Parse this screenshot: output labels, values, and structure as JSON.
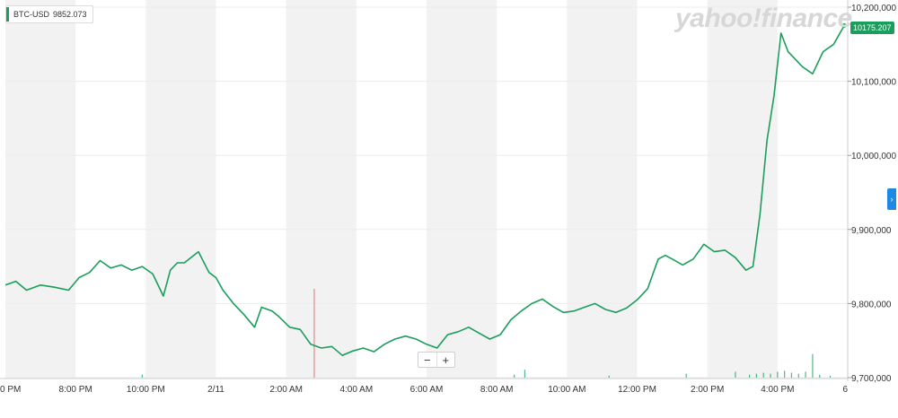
{
  "legend": {
    "symbol": "BTC-USD",
    "value": "9852.073",
    "color": "#1a9e5c"
  },
  "logo": "yahoo!finance",
  "current_price_label": "10175.207",
  "zoom": {
    "minus": "−",
    "plus": "+"
  },
  "side_tab_icon": "chevron-right-icon",
  "side_tab_glyph": "›",
  "colors": {
    "line": "#1a9e5c",
    "band": "#f2f2f2",
    "volume": "#1a9e5c",
    "volume_down": "#e06666"
  },
  "chart_data": {
    "type": "line",
    "ylim": [
      9700000,
      10200000
    ],
    "y_ticks": [
      {
        "value": 10200000,
        "label": "10,200,000"
      },
      {
        "value": 10100000,
        "label": "10,100,000"
      },
      {
        "value": 10000000,
        "label": "10,000,000"
      },
      {
        "value": 9900000,
        "label": "9,900,000"
      },
      {
        "value": 9800000,
        "label": "9,800,000"
      },
      {
        "value": 9700000,
        "label": "9,700,000"
      }
    ],
    "xlim": [
      18,
      42
    ],
    "x_ticks": [
      {
        "value": 18,
        "label": "0 PM"
      },
      {
        "value": 20,
        "label": "8:00 PM"
      },
      {
        "value": 22,
        "label": "10:00 PM"
      },
      {
        "value": 24,
        "label": "2/11"
      },
      {
        "value": 26,
        "label": "2:00 AM"
      },
      {
        "value": 28,
        "label": "4:00 AM"
      },
      {
        "value": 30,
        "label": "6:00 AM"
      },
      {
        "value": 32,
        "label": "8:00 AM"
      },
      {
        "value": 34,
        "label": "10:00 AM"
      },
      {
        "value": 36,
        "label": "12:00 PM"
      },
      {
        "value": 38,
        "label": "2:00 PM"
      },
      {
        "value": 40,
        "label": "4:00 PM"
      },
      {
        "value": 42,
        "label": "6"
      }
    ],
    "bands": [
      [
        18,
        20
      ],
      [
        22,
        24
      ],
      [
        26,
        28
      ],
      [
        30,
        32
      ],
      [
        34,
        36
      ],
      [
        38,
        40
      ]
    ],
    "series": [
      {
        "x": [
          18.0,
          18.3,
          18.6,
          19.0,
          19.4,
          19.8,
          20.1,
          20.4,
          20.7,
          21.0,
          21.3,
          21.6,
          21.9,
          22.2,
          22.5,
          22.7,
          22.9,
          23.1,
          23.5,
          23.8,
          24.0,
          24.2,
          24.5,
          24.8,
          25.1,
          25.3,
          25.6,
          25.8,
          26.1,
          26.4,
          26.7,
          27.0,
          27.3,
          27.6,
          27.9,
          28.2,
          28.5,
          28.8,
          29.1,
          29.4,
          29.7,
          30.0,
          30.3,
          30.6,
          30.9,
          31.2,
          31.5,
          31.8,
          32.1,
          32.4,
          32.7,
          33.0,
          33.3,
          33.6,
          33.9,
          34.2,
          34.5,
          34.8,
          35.1,
          35.4,
          35.7,
          36.0,
          36.3,
          36.6,
          36.8,
          37.0,
          37.3,
          37.6,
          37.9,
          38.2,
          38.5,
          38.8,
          39.1,
          39.3,
          39.5,
          39.7,
          39.9,
          40.1,
          40.3,
          40.5,
          40.7,
          41.0,
          41.3,
          41.6,
          41.9
        ],
        "y": [
          9825000,
          9830000,
          9818000,
          9825000,
          9822000,
          9818000,
          9835000,
          9842000,
          9858000,
          9848000,
          9852000,
          9845000,
          9850000,
          9840000,
          9810000,
          9845000,
          9855000,
          9855000,
          9870000,
          9842000,
          9835000,
          9818000,
          9800000,
          9785000,
          9768000,
          9795000,
          9790000,
          9782000,
          9768000,
          9765000,
          9745000,
          9740000,
          9742000,
          9730000,
          9736000,
          9740000,
          9735000,
          9745000,
          9752000,
          9756000,
          9752000,
          9745000,
          9740000,
          9758000,
          9762000,
          9768000,
          9760000,
          9752000,
          9758000,
          9778000,
          9790000,
          9800000,
          9806000,
          9796000,
          9788000,
          9790000,
          9795000,
          9800000,
          9792000,
          9788000,
          9794000,
          9805000,
          9820000,
          9860000,
          9865000,
          9860000,
          9852000,
          9860000,
          9880000,
          9870000,
          9872000,
          9862000,
          9845000,
          9850000,
          9920000,
          10020000,
          10080000,
          10165000,
          10140000,
          10130000,
          10120000,
          10110000,
          10140000,
          10150000,
          10175207
        ]
      }
    ],
    "volume": {
      "x": [
        21.9,
        26.8,
        32.5,
        32.8,
        35.2,
        37.4,
        38.8,
        39.2,
        39.4,
        39.6,
        39.8,
        40.0,
        40.2,
        40.4,
        40.6,
        40.8,
        41.0,
        41.2,
        41.5
      ],
      "y": [
        3,
        90,
        3,
        8,
        2,
        4,
        6,
        3,
        4,
        5,
        4,
        6,
        7,
        5,
        4,
        6,
        24,
        3,
        2
      ],
      "ymax": 100
    }
  }
}
